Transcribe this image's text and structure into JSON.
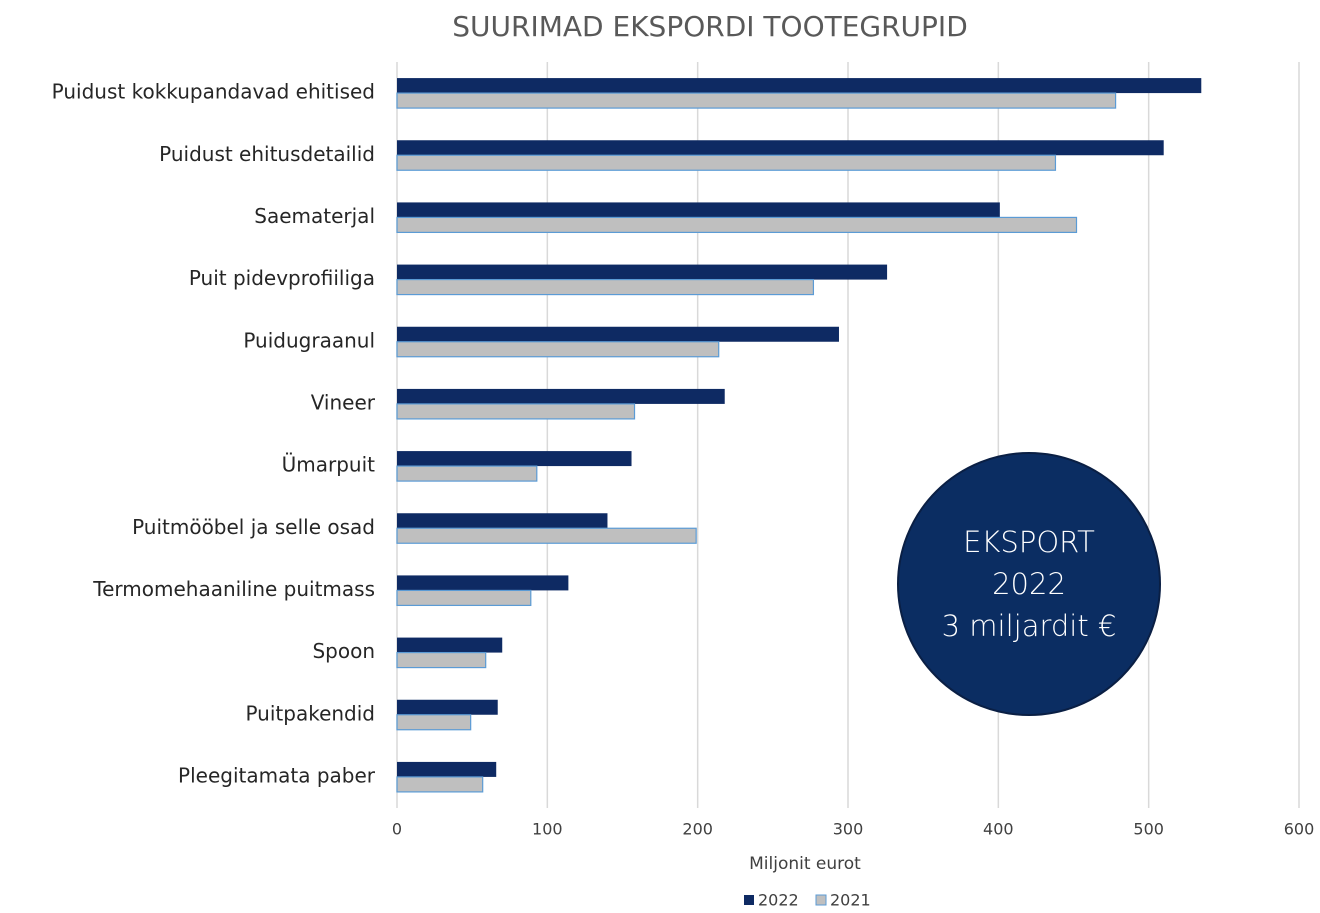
{
  "chart_data": {
    "type": "hbar",
    "title": "SUURIMAD EKSPORDI TOOTEGRUPID",
    "xlabel": "Miljonit eurot",
    "categories": [
      "Puidust kokkupandavad ehitised",
      "Puidust ehitusdetailid",
      "Saematerjal",
      "Puit pidevprofiiliga",
      "Puidugraanul",
      "Vineer",
      "Ümarpuit",
      "Puitmööbel ja selle osad",
      "Termomehaaniline puitmass",
      "Spoon",
      "Puitpakendid",
      "Pleegitamata paber"
    ],
    "series": [
      {
        "name": "2022",
        "color": "#0e2a63",
        "values": [
          535,
          510,
          401,
          326,
          294,
          218,
          156,
          140,
          114,
          70,
          67,
          66
        ]
      },
      {
        "name": "2021",
        "color": "#bfbfbf",
        "values": [
          478,
          438,
          452,
          277,
          214,
          158,
          93,
          199,
          89,
          59,
          49,
          57
        ]
      }
    ],
    "xlim": [
      0,
      600
    ],
    "xticks": [
      0,
      100,
      200,
      300,
      400,
      500,
      600
    ],
    "grid": true,
    "legend": "bottom",
    "annotation": {
      "lines": [
        "EKSPORT",
        "2022",
        "3 miljardit €"
      ],
      "color": "#0b2d62"
    }
  }
}
